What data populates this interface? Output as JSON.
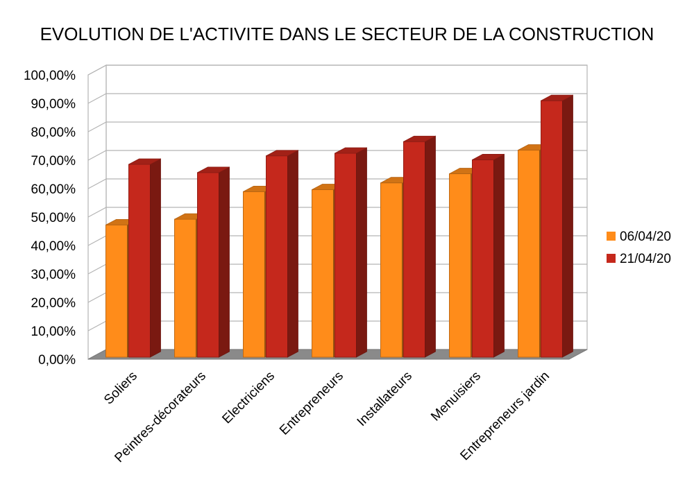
{
  "chart_data": {
    "type": "bar",
    "title": "EVOLUTION DE L'ACTIVITE DANS LE SECTEUR DE LA CONSTRUCTION",
    "xlabel": "",
    "ylabel": "",
    "categories": [
      "Soliers",
      "Peintres-décorateurs",
      "Electriciens",
      "Entrepreneurs",
      "Installateurs",
      "Menuisiers",
      "Entrepreneurs jardin"
    ],
    "series": [
      {
        "name": "06/04/20",
        "color": "#ff8c1a",
        "values": [
          0.465,
          0.485,
          0.582,
          0.589,
          0.613,
          0.645,
          0.728
        ]
      },
      {
        "name": "21/04/20",
        "color": "#c5281c",
        "values": [
          0.678,
          0.649,
          0.708,
          0.717,
          0.758,
          0.694,
          0.902
        ]
      }
    ],
    "ylim": [
      0,
      1
    ],
    "yticks": [
      "0,00%",
      "10,00%",
      "20,00%",
      "30,00%",
      "40,00%",
      "50,00%",
      "60,00%",
      "70,00%",
      "80,00%",
      "90,00%",
      "100,00%"
    ],
    "grid": true,
    "legend_position": "right",
    "style": "3d-bars"
  }
}
